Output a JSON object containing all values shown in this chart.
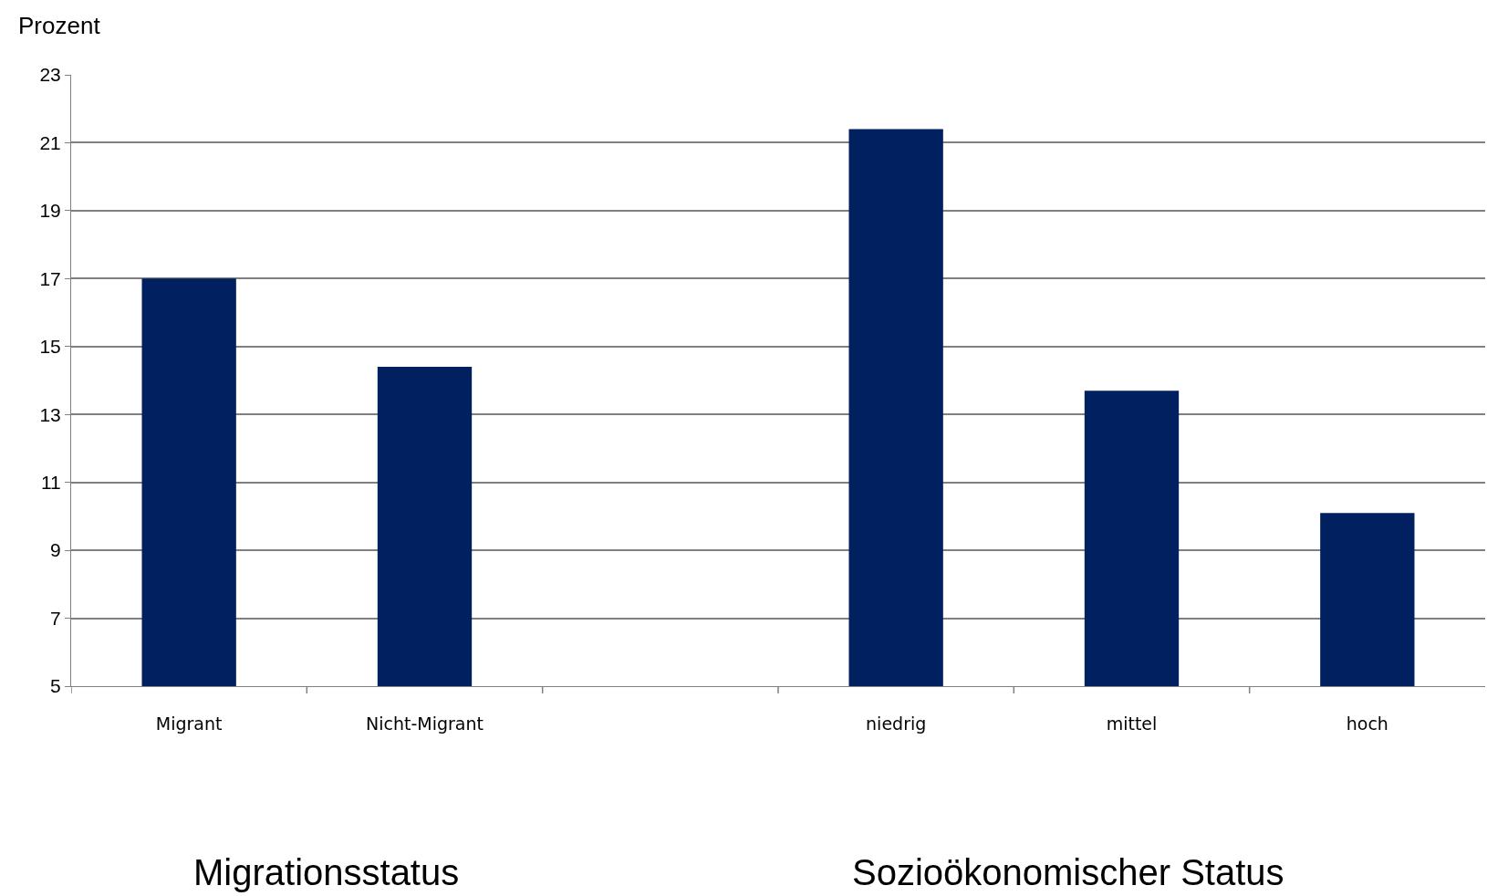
{
  "chart_data": {
    "type": "bar",
    "ylabel": "Prozent",
    "categories": [
      "Migrant",
      "Nicht-Migrant",
      null,
      "niedrig",
      "mittel",
      "hoch"
    ],
    "values": [
      17,
      14.4,
      null,
      21.4,
      13.7,
      10.1
    ],
    "color": "#002060",
    "ylim": [
      5,
      23
    ],
    "yticks": [
      5,
      7,
      9,
      11,
      13,
      15,
      17,
      19,
      21,
      23
    ],
    "grid": "y",
    "annotations": [
      "Migrationsstatus",
      "Sozioökonomischer Status"
    ]
  }
}
